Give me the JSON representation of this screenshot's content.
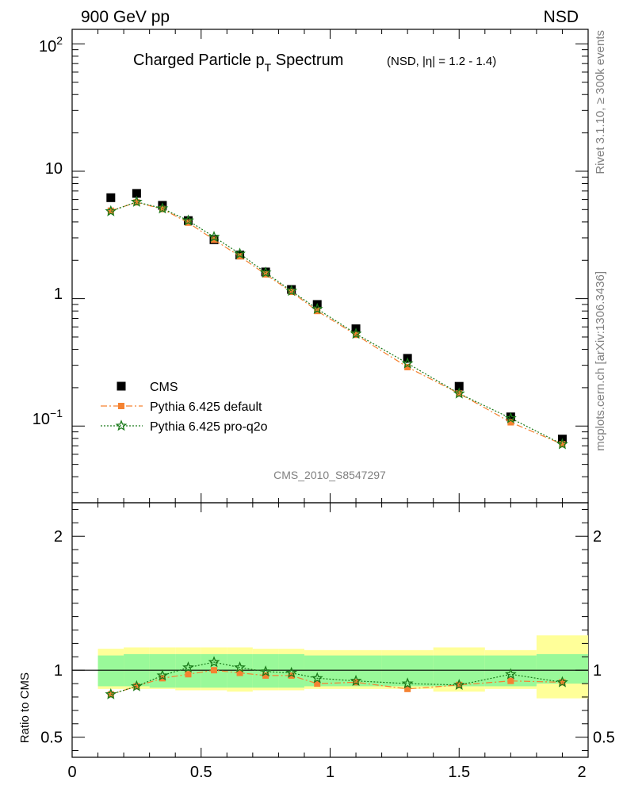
{
  "header": {
    "left": "900 GeV pp",
    "right": "NSD"
  },
  "title": {
    "main_prefix": "Charged Particle p",
    "main_sub": "T",
    "main_suffix": " Spectrum",
    "qualifier": "(NSD, |η| = 1.2 - 1.4)"
  },
  "side_labels": {
    "rivet": "Rivet 3.1.10, ≥ 300k events",
    "mcplots": "mcplots.cern.ch [arXiv:1306.3436]"
  },
  "analysis_id": "CMS_2010_S8547297",
  "legend": [
    {
      "label": "CMS",
      "series": "cms"
    },
    {
      "label": "Pythia 6.425 default",
      "series": "default"
    },
    {
      "label": "Pythia 6.425 pro-q2o",
      "series": "proq2o"
    }
  ],
  "colors": {
    "cms": "#000000",
    "default": "#f58231",
    "proq2o": "#1a7a1a",
    "band_inner": "#99f999",
    "band_outer": "#ffff99"
  },
  "chart_data": [
    {
      "type": "scatter",
      "panel": "main",
      "yscale": "log",
      "xlim": [
        0,
        2
      ],
      "ylim": [
        0.025,
        130
      ],
      "ytick_labels": [
        "10^-1",
        "1",
        "10",
        "10^2"
      ],
      "x": [
        0.15,
        0.25,
        0.35,
        0.45,
        0.55,
        0.65,
        0.75,
        0.85,
        0.95,
        1.1,
        1.3,
        1.5,
        1.7,
        1.9
      ],
      "series": [
        {
          "name": "CMS",
          "key": "cms",
          "marker": "square",
          "values": [
            6.2,
            6.7,
            5.4,
            4.1,
            2.9,
            2.2,
            1.62,
            1.18,
            0.9,
            0.58,
            0.34,
            0.205,
            0.118,
            0.079
          ]
        },
        {
          "name": "Pythia 6.425 default",
          "key": "default",
          "marker": "square-small",
          "line": "dashdot",
          "values": [
            4.9,
            5.7,
            5.05,
            3.95,
            2.9,
            2.15,
            1.55,
            1.13,
            0.8,
            0.52,
            0.29,
            0.18,
            0.107,
            0.072
          ]
        },
        {
          "name": "Pythia 6.425 pro-q2o",
          "key": "proq2o",
          "marker": "star",
          "line": "dotted",
          "values": [
            4.85,
            5.75,
            5.1,
            4.1,
            3.05,
            2.25,
            1.6,
            1.15,
            0.83,
            0.53,
            0.31,
            0.18,
            0.115,
            0.072
          ]
        }
      ]
    },
    {
      "type": "line",
      "panel": "ratio",
      "ylabel": "Ratio to CMS",
      "xlim": [
        0,
        2
      ],
      "ylim": [
        0.35,
        2.25
      ],
      "yticks": [
        0.5,
        1,
        2
      ],
      "ytick_labels": [
        "0.5",
        "1",
        "2"
      ],
      "xticks": [
        0,
        0.5,
        1,
        1.5,
        2
      ],
      "xtick_labels": [
        "0",
        "0.5",
        "1",
        "1.5",
        "2"
      ],
      "bins": [
        [
          0.1,
          0.2
        ],
        [
          0.2,
          0.3
        ],
        [
          0.3,
          0.4
        ],
        [
          0.4,
          0.5
        ],
        [
          0.5,
          0.6
        ],
        [
          0.6,
          0.7
        ],
        [
          0.7,
          0.8
        ],
        [
          0.8,
          0.9
        ],
        [
          0.9,
          1.0
        ],
        [
          1.0,
          1.2
        ],
        [
          1.2,
          1.4
        ],
        [
          1.4,
          1.6
        ],
        [
          1.6,
          1.8
        ],
        [
          1.8,
          2.0
        ]
      ],
      "band_inner": [
        [
          0.88,
          1.11
        ],
        [
          0.88,
          1.12
        ],
        [
          0.87,
          1.12
        ],
        [
          0.87,
          1.12
        ],
        [
          0.87,
          1.12
        ],
        [
          0.87,
          1.12
        ],
        [
          0.87,
          1.12
        ],
        [
          0.87,
          1.12
        ],
        [
          0.88,
          1.11
        ],
        [
          0.88,
          1.11
        ],
        [
          0.88,
          1.11
        ],
        [
          0.88,
          1.11
        ],
        [
          0.88,
          1.11
        ],
        [
          0.9,
          1.12
        ]
      ],
      "band_outer": [
        [
          0.86,
          1.16
        ],
        [
          0.86,
          1.17
        ],
        [
          0.86,
          1.17
        ],
        [
          0.85,
          1.17
        ],
        [
          0.85,
          1.17
        ],
        [
          0.84,
          1.17
        ],
        [
          0.85,
          1.16
        ],
        [
          0.85,
          1.16
        ],
        [
          0.86,
          1.15
        ],
        [
          0.86,
          1.15
        ],
        [
          0.86,
          1.15
        ],
        [
          0.84,
          1.17
        ],
        [
          0.86,
          1.15
        ],
        [
          0.79,
          1.26
        ]
      ],
      "x": [
        0.15,
        0.25,
        0.35,
        0.45,
        0.55,
        0.65,
        0.75,
        0.85,
        0.95,
        1.1,
        1.3,
        1.5,
        1.7,
        1.9
      ],
      "series": [
        {
          "name": "Pythia 6.425 default",
          "key": "default",
          "marker": "square-small",
          "line": "dashdot",
          "values": [
            0.82,
            0.88,
            0.94,
            0.97,
            1.0,
            0.98,
            0.96,
            0.96,
            0.9,
            0.91,
            0.86,
            0.89,
            0.92,
            0.91
          ]
        },
        {
          "name": "Pythia 6.425 pro-q2o",
          "key": "proq2o",
          "marker": "star",
          "line": "dotted",
          "values": [
            0.82,
            0.88,
            0.96,
            1.02,
            1.06,
            1.02,
            0.99,
            0.98,
            0.94,
            0.92,
            0.9,
            0.89,
            0.97,
            0.91
          ]
        }
      ]
    }
  ]
}
